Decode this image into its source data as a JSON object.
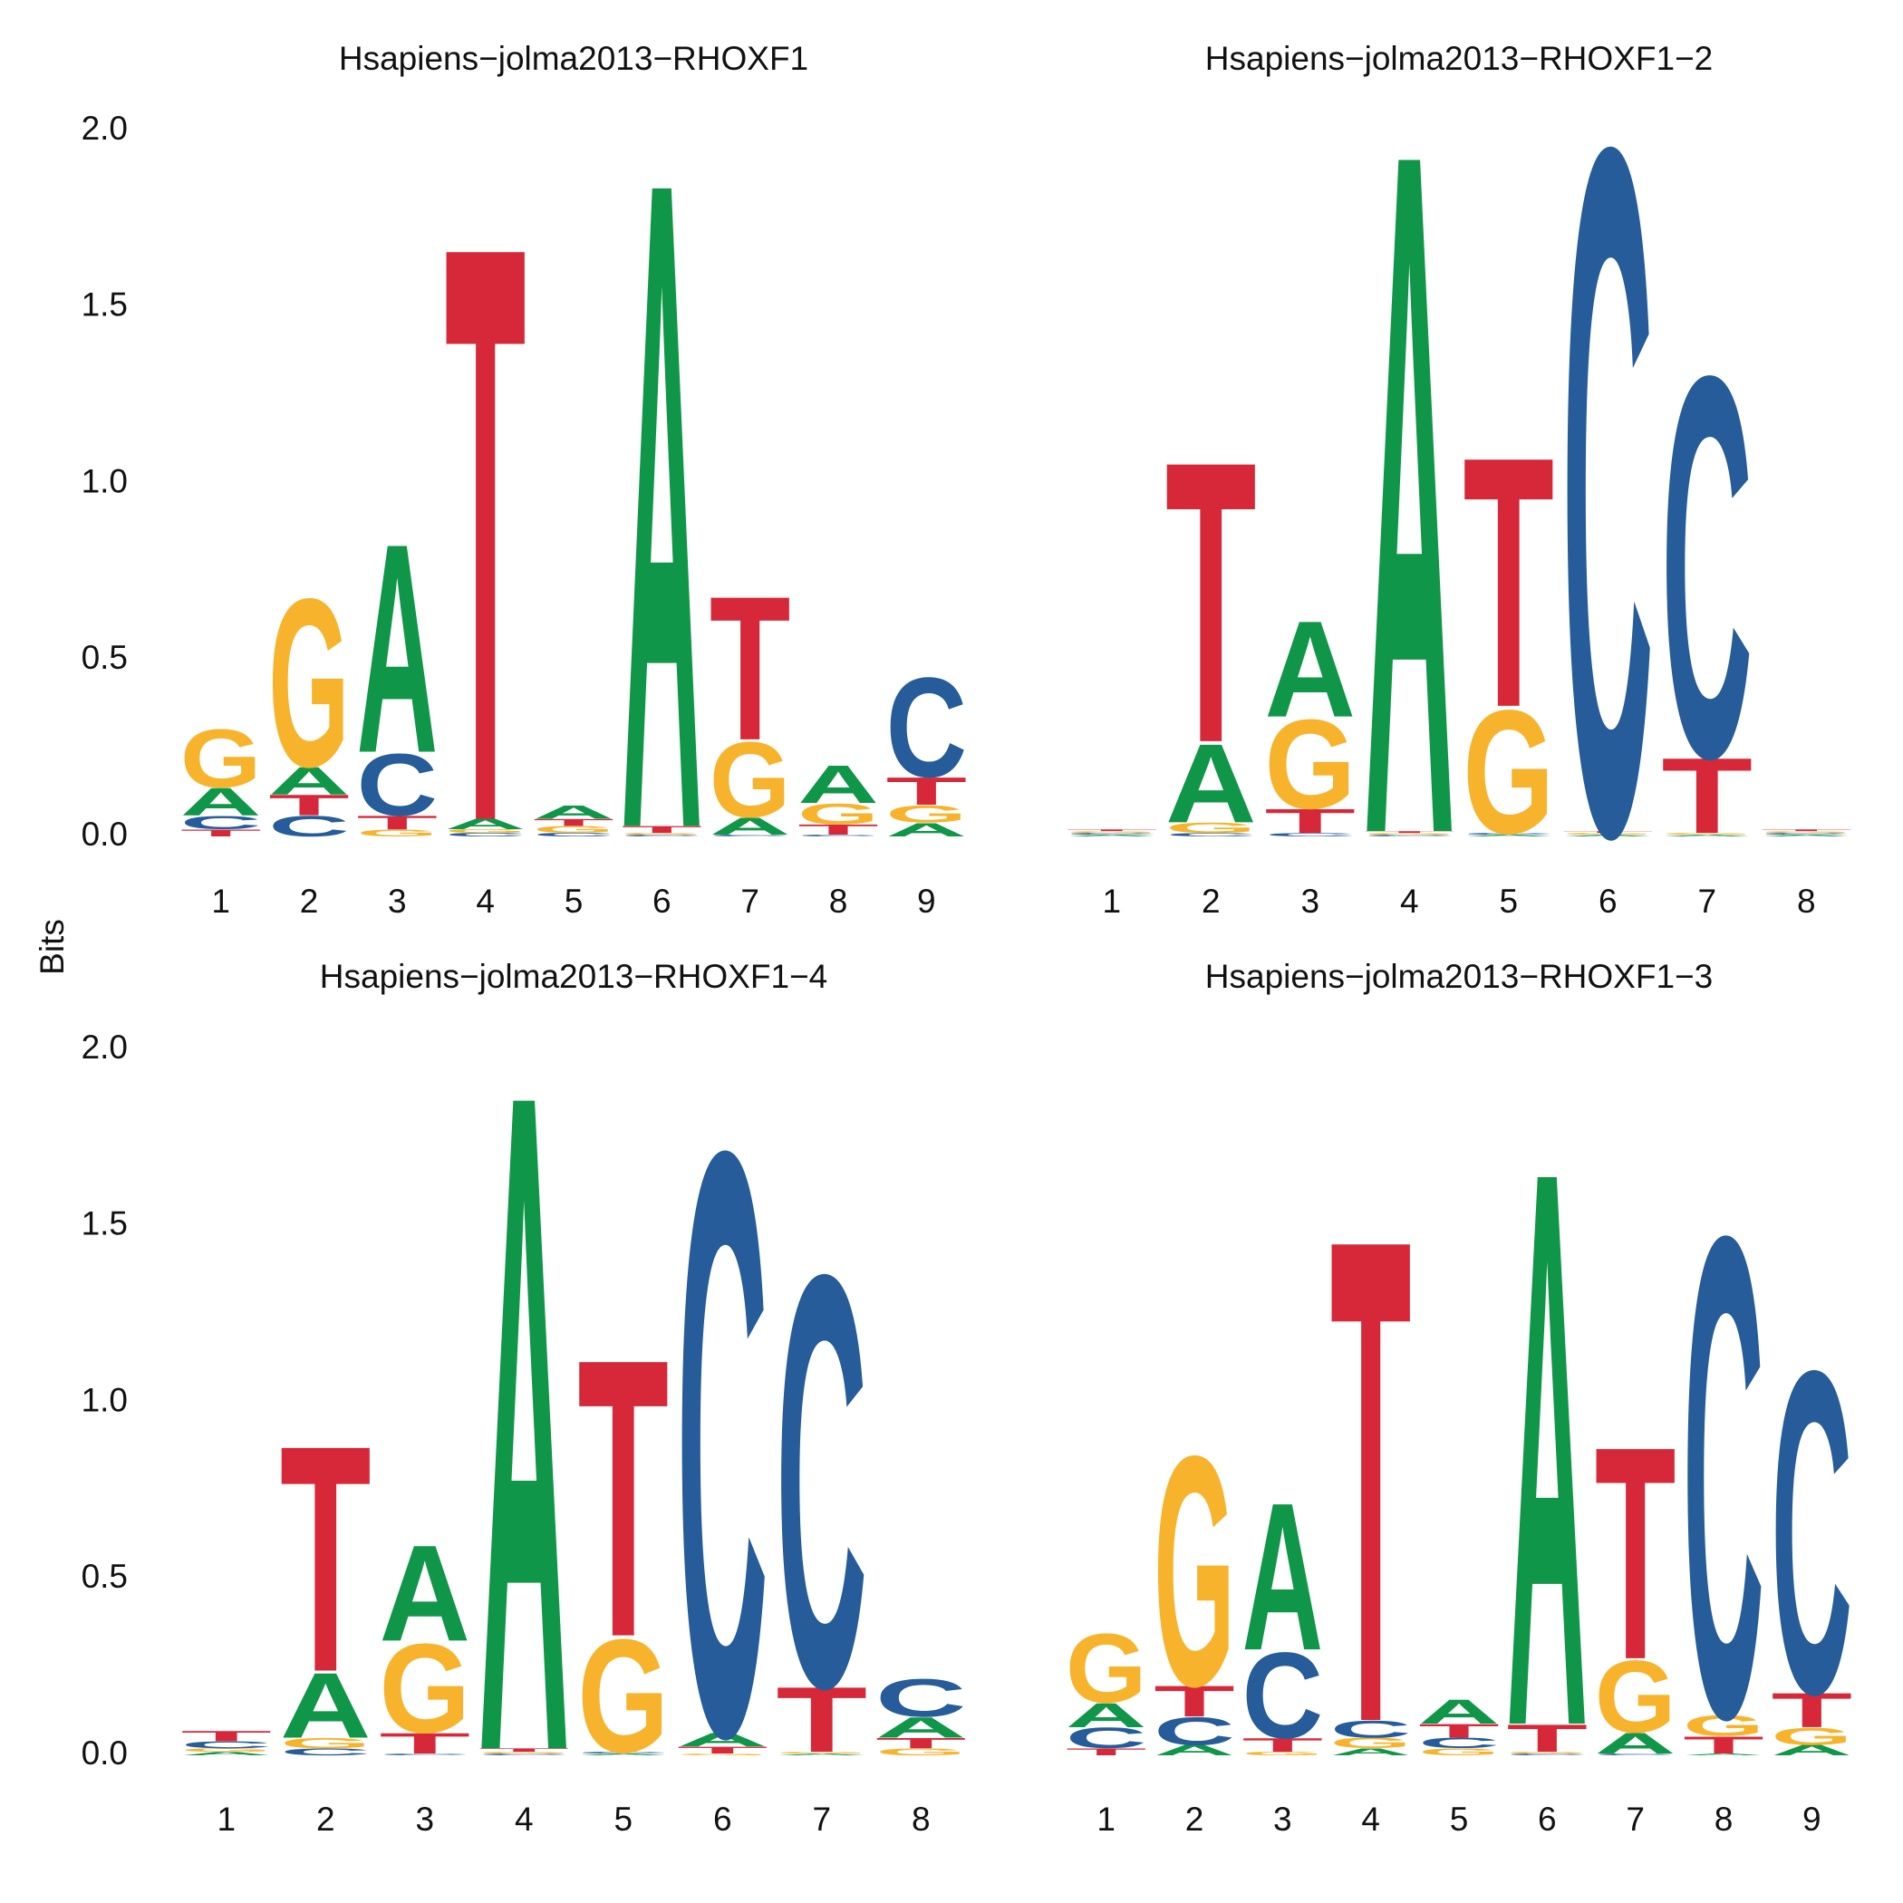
{
  "ylabel": "Bits",
  "chart_data": [
    {
      "type": "logo",
      "title": "Hsapiens−jolma2013−RHOXF1",
      "categories": [
        "1",
        "2",
        "3",
        "4",
        "5",
        "6",
        "7",
        "8",
        "9"
      ],
      "ylim": [
        0,
        2
      ],
      "yticks": [
        {
          "value": 0,
          "label": "0.0"
        },
        {
          "value": 0.5,
          "label": "0.5"
        },
        {
          "value": 1,
          "label": "1.0"
        },
        {
          "value": 1.5,
          "label": "1.5"
        },
        {
          "value": 2,
          "label": "2.0"
        }
      ],
      "series": [
        {
          "name": "A",
          "color": "#109648",
          "values": [
            0.08,
            0.08,
            0.61,
            0.03,
            0.04,
            1.89,
            0.05,
            0.11,
            0.04
          ]
        },
        {
          "name": "C",
          "color": "#255C99",
          "values": [
            0.04,
            0.06,
            0.18,
            0.01,
            0.01,
            0.005,
            0.005,
            0.005,
            0.29
          ]
        },
        {
          "name": "G",
          "color": "#F7B32B",
          "values": [
            0.17,
            0.49,
            0.02,
            0.01,
            0.02,
            0.005,
            0.22,
            0.06,
            0.05
          ]
        },
        {
          "name": "T",
          "color": "#D62839",
          "values": [
            0.02,
            0.06,
            0.04,
            1.68,
            0.02,
            0.02,
            0.42,
            0.03,
            0.08
          ]
        }
      ]
    },
    {
      "type": "logo",
      "title": "Hsapiens−jolma2013−RHOXF1−2",
      "categories": [
        "1",
        "2",
        "3",
        "4",
        "5",
        "6",
        "7",
        "8"
      ],
      "ylim": [
        0,
        2
      ],
      "series": [
        {
          "name": "A",
          "color": "#109648",
          "values": [
            0.005,
            0.23,
            0.28,
            1.99,
            0.005,
            0.005,
            0.005,
            0.005
          ]
        },
        {
          "name": "C",
          "color": "#255C99",
          "values": [
            0.005,
            0.01,
            0.01,
            0.005,
            0.005,
            2.0,
            1.11,
            0.005
          ]
        },
        {
          "name": "G",
          "color": "#F7B32B",
          "values": [
            0.005,
            0.03,
            0.26,
            0.005,
            0.36,
            0.005,
            0.005,
            0.005
          ]
        },
        {
          "name": "T",
          "color": "#D62839",
          "values": [
            0.005,
            0.82,
            0.07,
            0.005,
            0.73,
            0.005,
            0.22,
            0.005
          ]
        }
      ]
    },
    {
      "type": "logo",
      "title": "Hsapiens−jolma2013−RHOXF1−4",
      "categories": [
        "1",
        "2",
        "3",
        "4",
        "5",
        "6",
        "7",
        "8"
      ],
      "ylim": [
        0,
        2
      ],
      "yticks": [
        {
          "value": 0,
          "label": "0.0"
        },
        {
          "value": 0.5,
          "label": "0.5"
        },
        {
          "value": 1,
          "label": "1.0"
        },
        {
          "value": 1.5,
          "label": "1.5"
        },
        {
          "value": 2,
          "label": "2.0"
        }
      ],
      "series": [
        {
          "name": "A",
          "color": "#109648",
          "values": [
            0.01,
            0.19,
            0.28,
            1.92,
            0.005,
            0.04,
            0.005,
            0.06
          ]
        },
        {
          "name": "C",
          "color": "#255C99",
          "values": [
            0.02,
            0.02,
            0.005,
            0.005,
            0.005,
            1.7,
            1.2,
            0.11
          ]
        },
        {
          "name": "G",
          "color": "#F7B32B",
          "values": [
            0.01,
            0.03,
            0.26,
            0.005,
            0.33,
            0.005,
            0.005,
            0.02
          ]
        },
        {
          "name": "T",
          "color": "#D62839",
          "values": [
            0.03,
            0.66,
            0.06,
            0.01,
            0.81,
            0.02,
            0.19,
            0.03
          ]
        }
      ]
    },
    {
      "type": "logo",
      "title": "Hsapiens−jolma2013−RHOXF1−3",
      "categories": [
        "1",
        "2",
        "3",
        "4",
        "5",
        "6",
        "7",
        "8",
        "9"
      ],
      "ylim": [
        0,
        2
      ],
      "series": [
        {
          "name": "A",
          "color": "#109648",
          "values": [
            0.07,
            0.03,
            0.43,
            0.02,
            0.07,
            1.62,
            0.06,
            0.005,
            0.03
          ]
        },
        {
          "name": "C",
          "color": "#255C99",
          "values": [
            0.06,
            0.08,
            0.25,
            0.05,
            0.03,
            0.005,
            0.005,
            1.4,
            0.94
          ]
        },
        {
          "name": "G",
          "color": "#F7B32B",
          "values": [
            0.2,
            0.67,
            0.01,
            0.03,
            0.02,
            0.005,
            0.21,
            0.06,
            0.05
          ]
        },
        {
          "name": "T",
          "color": "#D62839",
          "values": [
            0.02,
            0.09,
            0.04,
            1.41,
            0.04,
            0.08,
            0.62,
            0.05,
            0.1
          ]
        }
      ]
    }
  ]
}
